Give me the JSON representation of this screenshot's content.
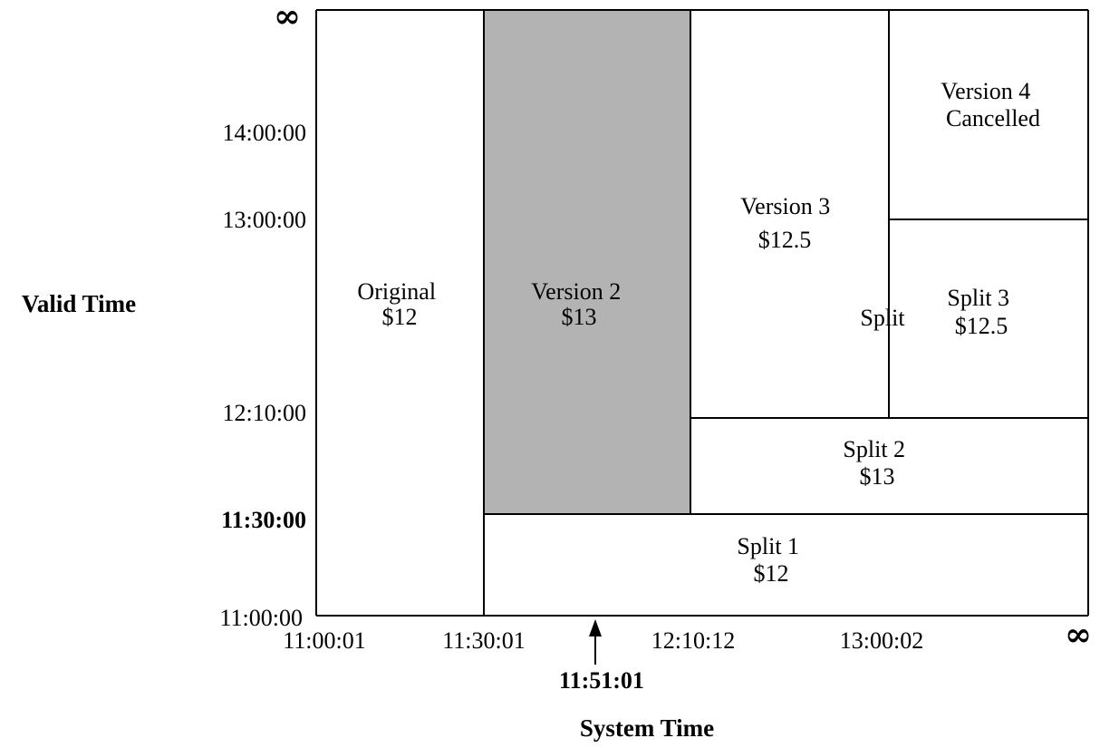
{
  "axes": {
    "y_title": "Valid Time",
    "x_title": "System Time",
    "y_infinity": "∞",
    "x_infinity": "∞",
    "y_ticks": [
      {
        "label": "14:00:00",
        "bold": false
      },
      {
        "label": "13:00:00",
        "bold": false
      },
      {
        "label": "12:10:00",
        "bold": false
      },
      {
        "label": "11:30:00",
        "bold": true
      },
      {
        "label": "11:00:00",
        "bold": false
      }
    ],
    "x_ticks": [
      {
        "label": "11:00:01"
      },
      {
        "label": "11:30:01"
      },
      {
        "label": "12:10:12"
      },
      {
        "label": "13:00:02"
      }
    ],
    "marker": {
      "label": "11:51:01"
    }
  },
  "regions": [
    {
      "id": "original",
      "lines": [
        "Original",
        "$12"
      ],
      "fill": "#ffffff"
    },
    {
      "id": "version-2",
      "lines": [
        "Version 2",
        "$13"
      ],
      "fill": "#b3b3b3"
    },
    {
      "id": "version-3",
      "lines": [
        "Version 3",
        "$12.5"
      ],
      "fill": "#ffffff"
    },
    {
      "id": "version-4",
      "lines": [
        "Version 4",
        "Cancelled"
      ],
      "fill": "#ffffff"
    },
    {
      "id": "split-3",
      "lines": [
        "Split 3",
        "$12.5"
      ],
      "fill": "#ffffff"
    },
    {
      "id": "split-2",
      "lines": [
        "Split 2",
        "$13"
      ],
      "fill": "#ffffff"
    },
    {
      "id": "split-1",
      "lines": [
        "Split 1",
        "$12"
      ],
      "fill": "#ffffff"
    }
  ],
  "annotations": [
    {
      "id": "split",
      "text": "Split"
    }
  ]
}
